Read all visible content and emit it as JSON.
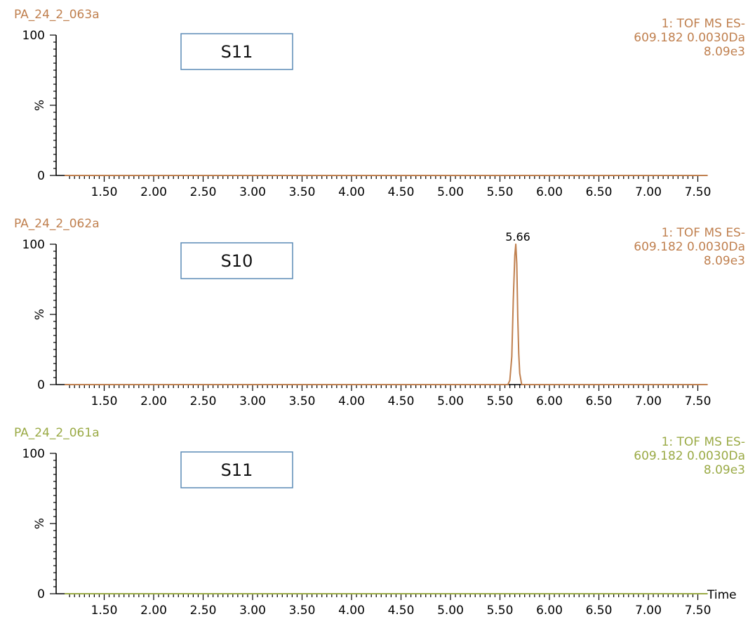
{
  "x_axis_label": "Time",
  "chart_data": [
    {
      "type": "line",
      "sample": "PA_24_2_063a",
      "label_box": "S11",
      "info": [
        "1: TOF MS ES-",
        "609.182 0.0030Da",
        "8.09e3"
      ],
      "color": "#c0804f",
      "ylabel": "%",
      "ylim": [
        0,
        100
      ],
      "yticks": [
        "100",
        "0"
      ],
      "xlim": [
        1.1,
        7.6
      ],
      "xticks": [
        "1.50",
        "2.00",
        "2.50",
        "3.00",
        "3.50",
        "4.00",
        "4.50",
        "5.00",
        "5.50",
        "6.00",
        "6.50",
        "7.00",
        "7.50"
      ],
      "series": [
        {
          "x": [
            1.1,
            7.6
          ],
          "y": [
            0,
            0
          ]
        }
      ],
      "peaks": []
    },
    {
      "type": "line",
      "sample": "PA_24_2_062a",
      "label_box": "S10",
      "info": [
        "1: TOF MS ES-",
        "609.182 0.0030Da",
        "8.09e3"
      ],
      "color": "#c0804f",
      "ylabel": "%",
      "ylim": [
        0,
        100
      ],
      "yticks": [
        "100",
        "0"
      ],
      "xlim": [
        1.1,
        7.6
      ],
      "xticks": [
        "1.50",
        "2.00",
        "2.50",
        "3.00",
        "3.50",
        "4.00",
        "4.50",
        "5.00",
        "5.50",
        "6.00",
        "6.50",
        "7.00",
        "7.50"
      ],
      "series": [
        {
          "x": [
            1.1,
            5.58,
            5.6,
            5.62,
            5.635,
            5.65,
            5.66,
            5.67,
            5.68,
            5.69,
            5.7,
            5.72,
            7.6
          ],
          "y": [
            0,
            0,
            3,
            20,
            60,
            92,
            100,
            86,
            48,
            22,
            8,
            0,
            0
          ]
        }
      ],
      "peaks": [
        {
          "x": 5.66,
          "y": 100,
          "label": "5.66"
        }
      ]
    },
    {
      "type": "line",
      "sample": "PA_24_2_061a",
      "label_box": "S11",
      "info": [
        "1: TOF MS ES-",
        "609.182 0.0030Da",
        "8.09e3"
      ],
      "color": "#9aaa45",
      "ylabel": "%",
      "ylim": [
        0,
        100
      ],
      "yticks": [
        "100",
        "0"
      ],
      "xlim": [
        1.1,
        7.6
      ],
      "xticks": [
        "1.50",
        "2.00",
        "2.50",
        "3.00",
        "3.50",
        "4.00",
        "4.50",
        "5.00",
        "5.50",
        "6.00",
        "6.50",
        "7.00",
        "7.50"
      ],
      "series": [
        {
          "x": [
            1.1,
            7.6
          ],
          "y": [
            0,
            0
          ]
        }
      ],
      "peaks": []
    }
  ]
}
